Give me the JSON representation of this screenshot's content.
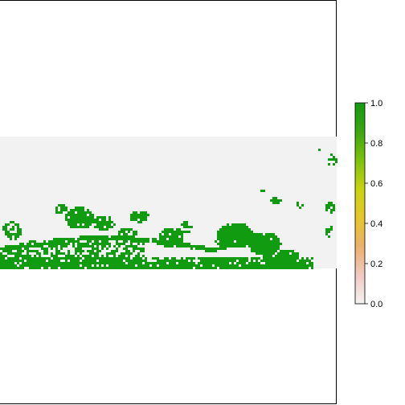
{
  "chart_data": {
    "type": "heatmap",
    "title": "",
    "xlabel": "",
    "ylabel": "",
    "value_range": [
      0.0,
      1.0
    ],
    "colors": {
      "background_cell": "#f2f2f2",
      "vegetation_cell": "#109b10",
      "gradient_stops": [
        "#f2f2f2",
        "#f0c9c0",
        "#ebb06b",
        "#e6c62a",
        "#c9d20e",
        "#7cc20b",
        "#3aa60f",
        "#109b10"
      ]
    },
    "legend": {
      "placement": "right",
      "ticks": [
        {
          "value": 0.0,
          "label": "0.0"
        },
        {
          "value": 0.2,
          "label": "0.2"
        },
        {
          "value": 0.4,
          "label": "0.4"
        },
        {
          "value": 0.6,
          "label": "0.6"
        },
        {
          "value": 0.8,
          "label": "0.8"
        },
        {
          "value": 1.0,
          "label": "1.0"
        }
      ]
    },
    "raster_summary": {
      "values_present": [
        0.0,
        1.0
      ],
      "description_of_pattern": "binary raster: value 1 patches concentrated along the lower band"
    }
  }
}
